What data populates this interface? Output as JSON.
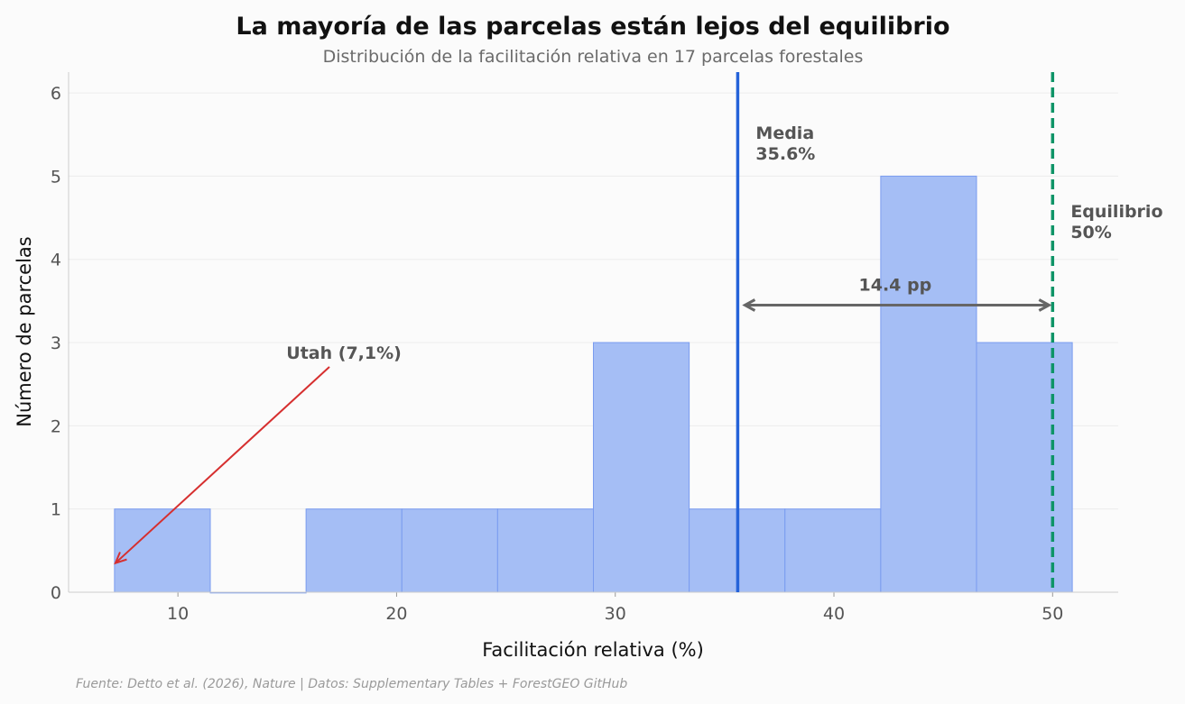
{
  "chart_data": {
    "type": "bar",
    "title": "La mayoría de las parcelas están lejos del equilibrio",
    "subtitle": "Distribución de la facilitación relativa en 17 parcelas forestales",
    "xlabel": "Facilitación relativa (%)",
    "ylabel": "Número de parcelas",
    "xlim": [
      5,
      53
    ],
    "ylim": [
      0,
      6.25
    ],
    "xticks": [
      10,
      20,
      30,
      40,
      50
    ],
    "yticks": [
      0,
      1,
      2,
      3,
      4,
      5,
      6
    ],
    "bins": [
      {
        "start": 7.1,
        "end": 11.48,
        "count": 1
      },
      {
        "start": 11.48,
        "end": 15.86,
        "count": 0
      },
      {
        "start": 15.86,
        "end": 20.24,
        "count": 1
      },
      {
        "start": 20.24,
        "end": 24.62,
        "count": 1
      },
      {
        "start": 24.62,
        "end": 29.0,
        "count": 1
      },
      {
        "start": 29.0,
        "end": 33.38,
        "count": 3
      },
      {
        "start": 33.38,
        "end": 37.76,
        "count": 1
      },
      {
        "start": 37.76,
        "end": 42.14,
        "count": 1
      },
      {
        "start": 42.14,
        "end": 46.52,
        "count": 5
      },
      {
        "start": 46.52,
        "end": 50.9,
        "count": 3
      }
    ],
    "grid": "horizontal",
    "mean_line": {
      "value": 35.6,
      "label_line1": "Media",
      "label_line2": "35.6%",
      "color": "#2563d9"
    },
    "equilibrium_line": {
      "value": 50,
      "label_line1": "Equilibrio",
      "label_line2": "50%",
      "color": "#0e9467"
    },
    "gap": {
      "from": 35.6,
      "to": 50,
      "y": 3.45,
      "label": "14.4 pp",
      "color": "#666666"
    },
    "annotation": {
      "text": "Utah (7,1%)",
      "target_x": 7.1,
      "target_y": 0.35,
      "text_x": 15.0,
      "text_y": 2.85,
      "color": "#d62f2f"
    },
    "source": "Fuente: Detto et al. (2026), Nature | Datos: Supplementary Tables + ForestGEO GitHub",
    "bar_fill": "#a5bef5",
    "bar_stroke": "#7a9cef"
  }
}
